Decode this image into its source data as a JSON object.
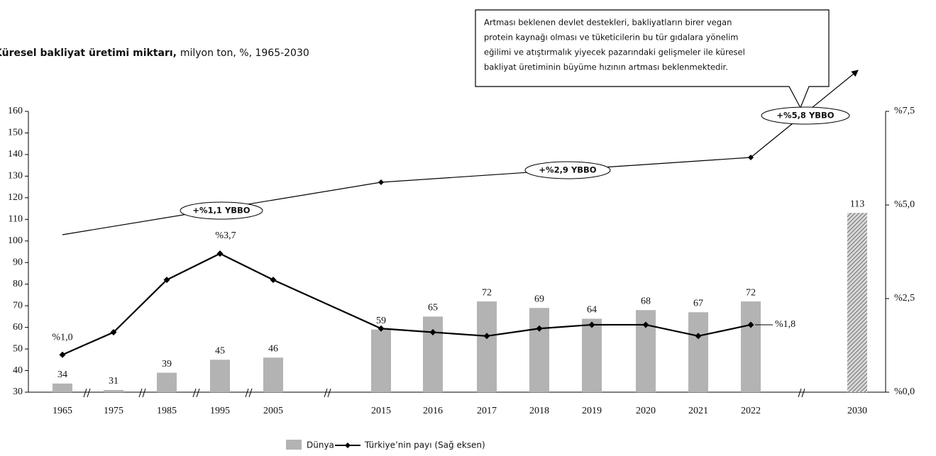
{
  "chart_data": {
    "type": "bar",
    "title": "Küresel bakliyat üretimi miktarı,",
    "subtitle": "milyon ton, %, 1965-2030",
    "categories": [
      "1965",
      "1975",
      "1985",
      "1995",
      "2005",
      "2015",
      "2016",
      "2017",
      "2018",
      "2019",
      "2020",
      "2021",
      "2022",
      "2030"
    ],
    "series": [
      {
        "name": "Dünya",
        "color": "#b3b3b3",
        "values": [
          34,
          31,
          39,
          45,
          46,
          59,
          65,
          72,
          69,
          64,
          68,
          67,
          72,
          113
        ]
      },
      {
        "name": "Türkiye’nin payı (Sağ eksen)",
        "type": "line",
        "axis": "y2",
        "color": "#000000",
        "values": [
          1.0,
          1.6,
          3.0,
          3.7,
          3.0,
          1.7,
          1.6,
          1.5,
          1.7,
          1.8,
          1.8,
          1.5,
          1.8,
          null
        ],
        "value_labels": [
          "%1,0",
          null,
          null,
          "%3,7",
          null,
          null,
          null,
          null,
          null,
          null,
          null,
          null,
          "%1,8",
          null
        ]
      }
    ],
    "ylim": [
      30,
      160
    ],
    "yticks": [
      30,
      40,
      50,
      60,
      70,
      80,
      90,
      100,
      110,
      120,
      130,
      140,
      150,
      160
    ],
    "y2lim": [
      0,
      7.5
    ],
    "y2ticks": [
      {
        "value": 0,
        "label": "%0,0"
      },
      {
        "value": 2.5,
        "label": "%2,5"
      },
      {
        "value": 5.0,
        "label": "%5,0"
      },
      {
        "value": 7.5,
        "label": "%7,5"
      }
    ],
    "annotations": [
      "+%1,1 YBBO",
      "+%2,9 YBBO",
      "+%5,8 YBBO"
    ],
    "callout": [
      "Artması beklenen devlet destekleri, bakliyatların birer vegan",
      "protein kaynağı olması ve tüketicilerin bu tür gıdalara yönelim",
      "eğilimi ve atıştırmalık yiyecek pazarındaki  gelişmeler ile küresel",
      "bakliyat üretiminin büyüme hızının artması beklenmektedir."
    ],
    "grid": false
  }
}
